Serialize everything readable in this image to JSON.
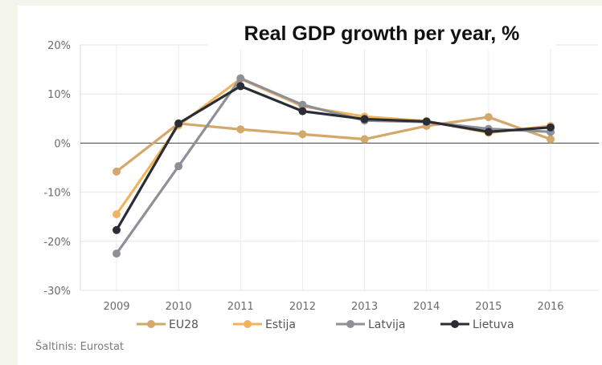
{
  "chart_data": {
    "type": "line",
    "title": "Real GDP growth per year, %",
    "source": "Šaltinis: Eurostat",
    "x": [
      "2009",
      "2010",
      "2011",
      "2012",
      "2013",
      "2014",
      "2015",
      "2016"
    ],
    "y_ticks": [
      "20%",
      "10%",
      "0%",
      "-10%",
      "-20%",
      "-30%"
    ],
    "ylim": [
      -30,
      20
    ],
    "grid": true,
    "legend_position": "bottom",
    "series": [
      {
        "name": "EU28",
        "color": "#d4a76a",
        "values": [
          -5.8,
          4.0,
          2.8,
          1.8,
          0.8,
          3.5,
          5.3,
          0.8
        ]
      },
      {
        "name": "Estija",
        "color": "#f0b45e",
        "values": [
          -14.5,
          3.6,
          13.1,
          7.5,
          5.4,
          4.5,
          2.1,
          3.5
        ]
      },
      {
        "name": "Latvija",
        "color": "#8e9097",
        "values": [
          -22.5,
          -4.7,
          13.2,
          7.8,
          4.6,
          4.3,
          2.9,
          2.3
        ]
      },
      {
        "name": "Lietuva",
        "color": "#2a2d35",
        "values": [
          -17.7,
          4.0,
          11.6,
          6.5,
          4.9,
          4.4,
          2.3,
          3.2
        ]
      }
    ]
  }
}
